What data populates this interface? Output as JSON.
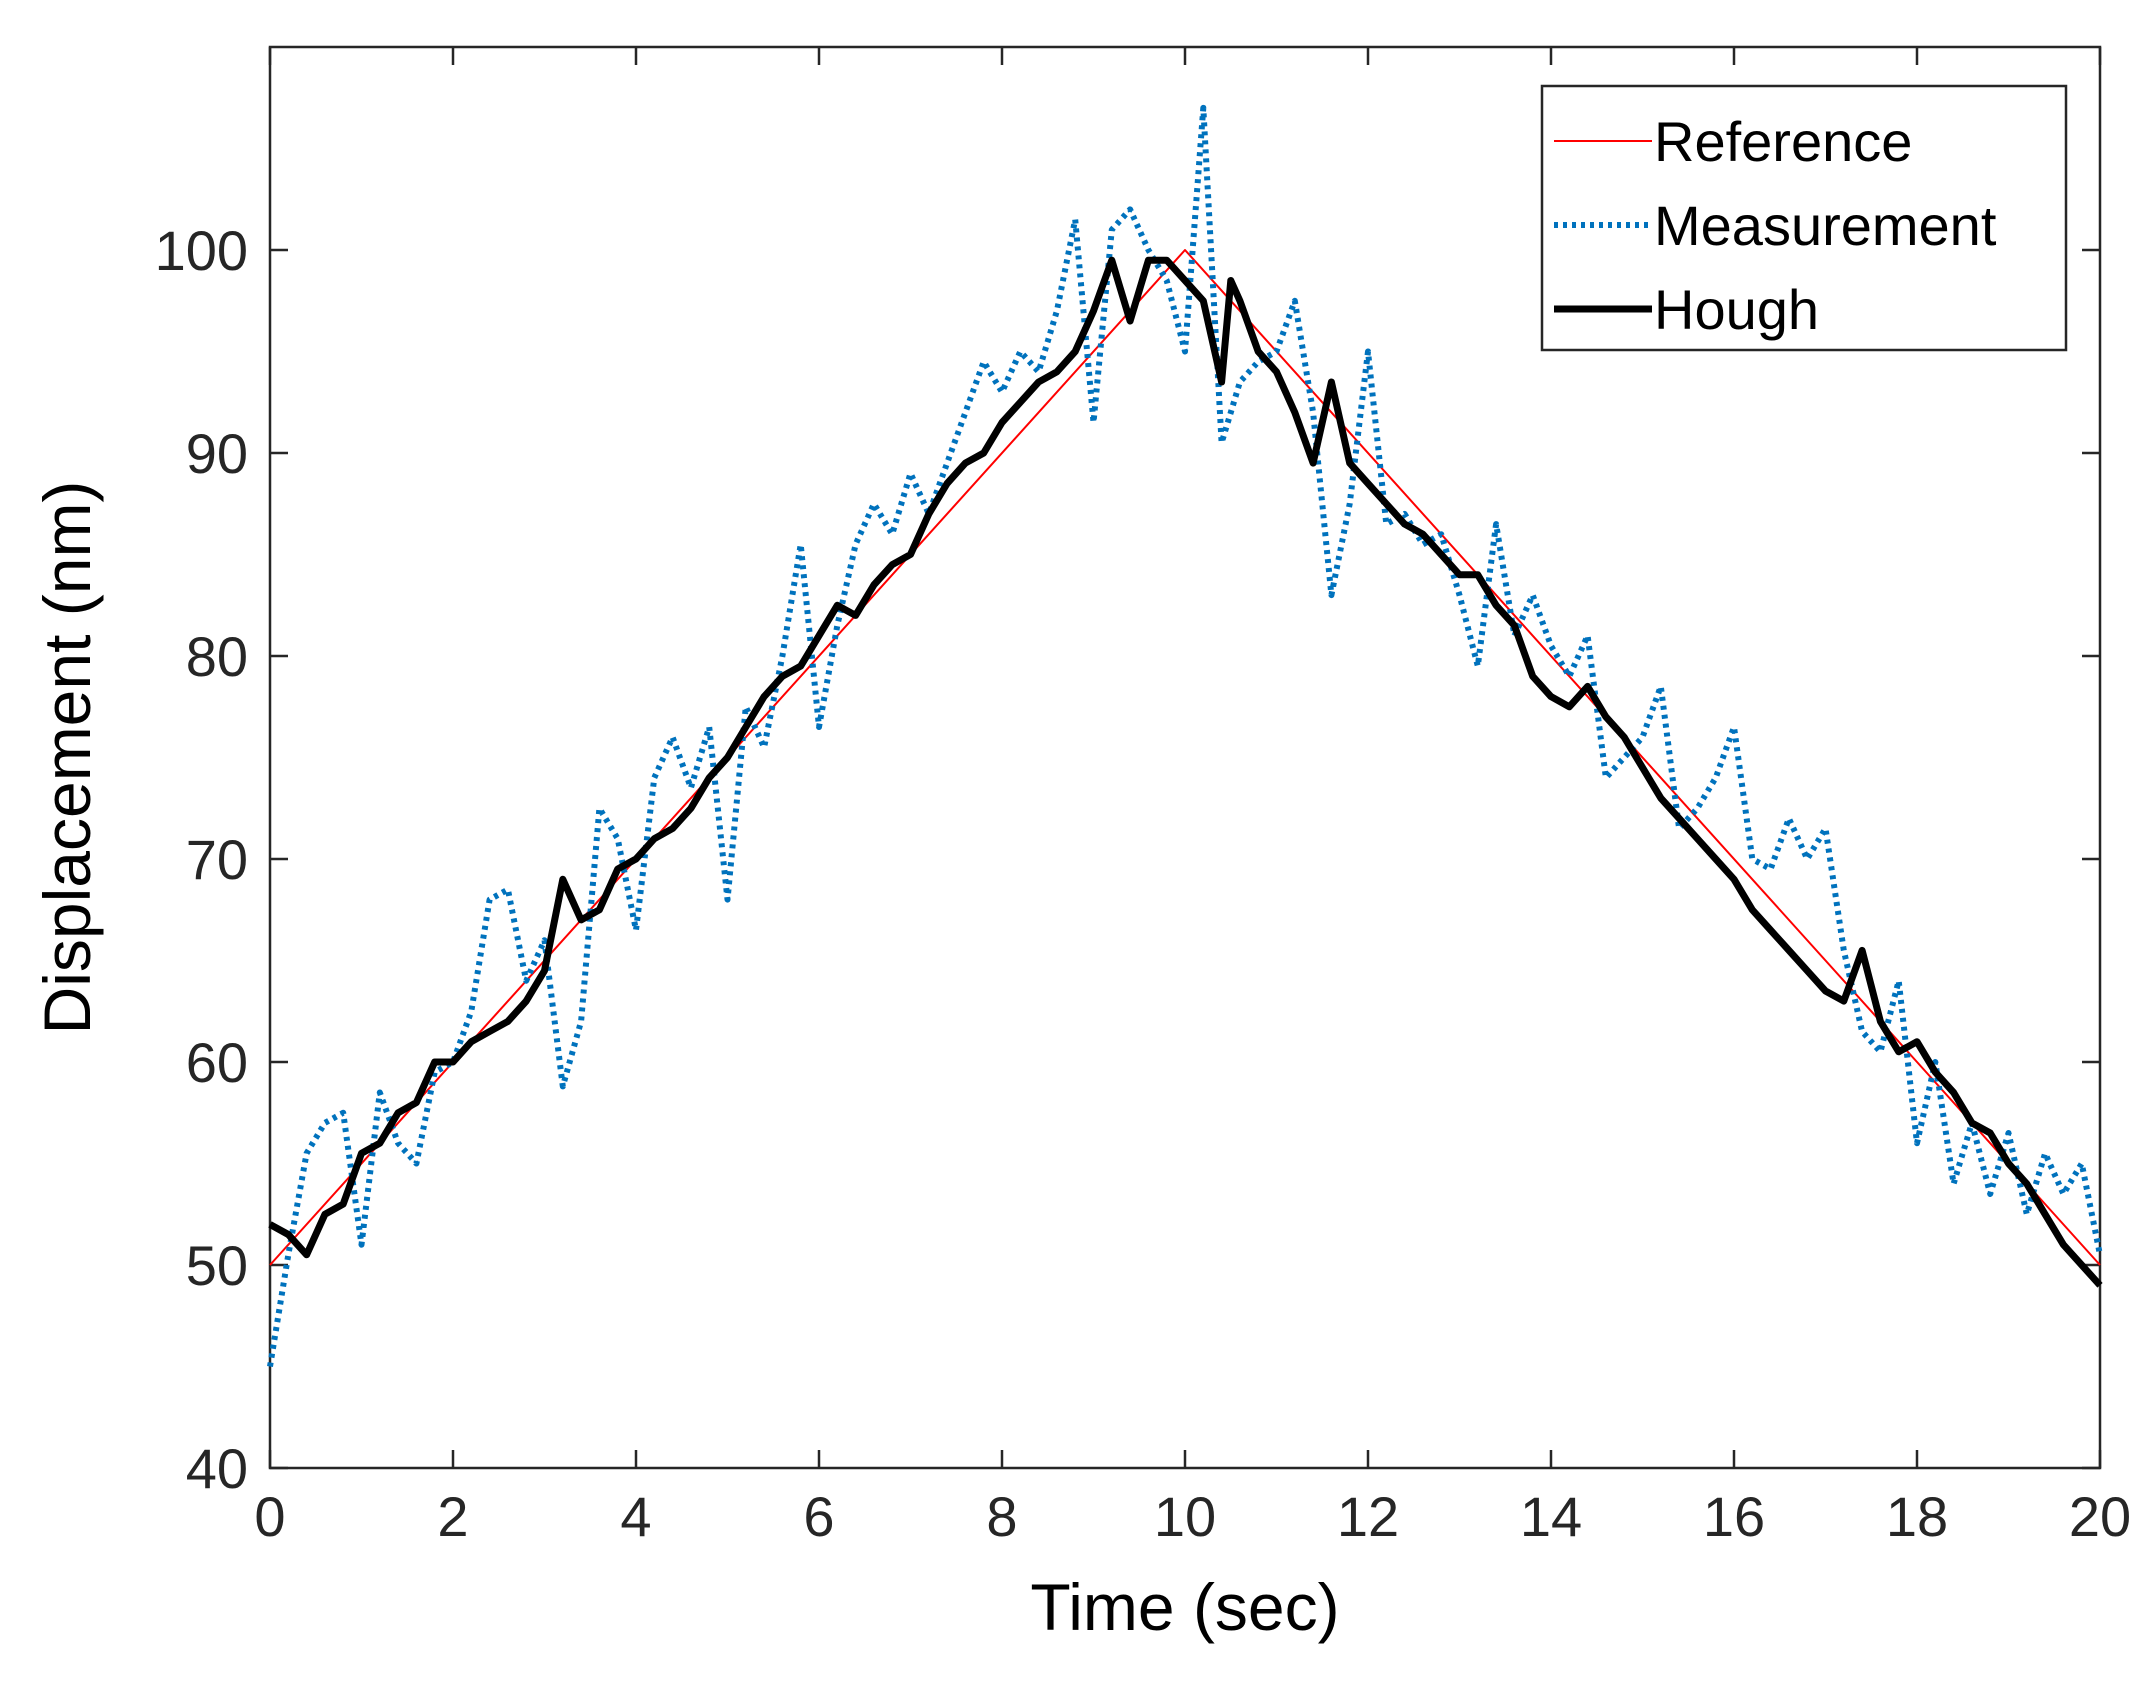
{
  "chart_data": {
    "type": "line",
    "title": "",
    "xlabel": "Time (sec)",
    "ylabel": "Displacement (nm)",
    "xlim": [
      0,
      20
    ],
    "ylim": [
      40,
      110
    ],
    "xticks": [
      0,
      2,
      4,
      6,
      8,
      10,
      12,
      14,
      16,
      18,
      20
    ],
    "yticks": [
      40,
      50,
      60,
      70,
      80,
      90,
      100
    ],
    "xtick_labels": [
      "0",
      "2",
      "4",
      "6",
      "8",
      "10",
      "12",
      "14",
      "16",
      "18",
      "20"
    ],
    "ytick_labels": [
      "40",
      "50",
      "60",
      "70",
      "80",
      "90",
      "100"
    ],
    "grid": false,
    "legend_position": "top-right",
    "series": [
      {
        "name": "Reference",
        "color": "#ff0000",
        "style": "solid-thin",
        "x": [
          0,
          10,
          20
        ],
        "y": [
          50,
          100,
          50
        ]
      },
      {
        "name": "Measurement",
        "color": "#0072bd",
        "style": "dotted",
        "x": [
          0,
          0.2,
          0.4,
          0.6,
          0.8,
          1.0,
          1.2,
          1.4,
          1.6,
          1.8,
          2.0,
          2.2,
          2.4,
          2.6,
          2.8,
          3.0,
          3.2,
          3.4,
          3.6,
          3.8,
          4.0,
          4.2,
          4.4,
          4.6,
          4.8,
          5.0,
          5.2,
          5.4,
          5.6,
          5.8,
          6.0,
          6.2,
          6.4,
          6.6,
          6.8,
          7.0,
          7.2,
          7.4,
          7.6,
          7.8,
          8.0,
          8.2,
          8.4,
          8.6,
          8.8,
          9.0,
          9.2,
          9.4,
          9.6,
          9.8,
          10.0,
          10.2,
          10.4,
          10.5,
          10.6,
          10.8,
          11.0,
          11.2,
          11.4,
          11.6,
          11.8,
          12.0,
          12.2,
          12.4,
          12.6,
          12.8,
          13.0,
          13.2,
          13.4,
          13.6,
          13.8,
          14.0,
          14.2,
          14.4,
          14.6,
          14.8,
          15.0,
          15.2,
          15.4,
          15.6,
          15.8,
          16.0,
          16.2,
          16.4,
          16.6,
          16.8,
          17.0,
          17.2,
          17.4,
          17.6,
          17.8,
          18.0,
          18.2,
          18.4,
          18.6,
          18.8,
          19.0,
          19.2,
          19.4,
          19.6,
          19.8,
          20.0
        ],
        "y": [
          45.0,
          50.5,
          55.5,
          57.0,
          57.5,
          51.0,
          58.5,
          56.0,
          55.0,
          59.5,
          60.0,
          62.5,
          68.0,
          68.5,
          64.0,
          66.0,
          58.8,
          62.0,
          72.5,
          71.0,
          66.5,
          74.0,
          76.0,
          73.5,
          76.5,
          68.0,
          77.5,
          75.5,
          80.0,
          85.5,
          76.5,
          81.5,
          85.5,
          87.5,
          86.0,
          89.0,
          87.0,
          89.5,
          92.0,
          94.5,
          93.0,
          95.0,
          94.0,
          97.0,
          101.5,
          91.5,
          101.0,
          102.0,
          100.0,
          98.5,
          95.0,
          107.0,
          90.5,
          92.0,
          93.5,
          94.5,
          95.0,
          97.5,
          92.0,
          83.0,
          87.5,
          95.0,
          86.5,
          87.0,
          85.5,
          86.0,
          83.0,
          79.5,
          86.5,
          81.0,
          83.0,
          80.5,
          79.0,
          81.0,
          74.0,
          75.0,
          76.0,
          78.5,
          71.5,
          72.5,
          74.0,
          76.5,
          70.0,
          69.5,
          72.0,
          70.0,
          71.5,
          65.5,
          61.5,
          60.5,
          64.0,
          56.0,
          60.0,
          54.0,
          57.0,
          53.5,
          56.5,
          52.5,
          55.5,
          53.5,
          55.0,
          50.5
        ]
      },
      {
        "name": "Hough",
        "color": "#000000",
        "style": "solid-thick",
        "x": [
          0,
          0.2,
          0.4,
          0.6,
          0.8,
          1.0,
          1.2,
          1.4,
          1.6,
          1.8,
          2.0,
          2.2,
          2.4,
          2.6,
          2.8,
          3.0,
          3.2,
          3.4,
          3.6,
          3.8,
          4.0,
          4.2,
          4.4,
          4.6,
          4.8,
          5.0,
          5.2,
          5.4,
          5.6,
          5.8,
          6.0,
          6.2,
          6.4,
          6.6,
          6.8,
          7.0,
          7.2,
          7.4,
          7.6,
          7.8,
          8.0,
          8.2,
          8.4,
          8.6,
          8.8,
          9.0,
          9.2,
          9.4,
          9.6,
          9.8,
          10.0,
          10.2,
          10.4,
          10.5,
          10.6,
          10.8,
          11.0,
          11.2,
          11.4,
          11.6,
          11.8,
          12.0,
          12.2,
          12.4,
          12.6,
          12.8,
          13.0,
          13.2,
          13.4,
          13.6,
          13.8,
          14.0,
          14.2,
          14.4,
          14.6,
          14.8,
          15.0,
          15.2,
          15.4,
          15.6,
          15.8,
          16.0,
          16.2,
          16.4,
          16.6,
          16.8,
          17.0,
          17.2,
          17.4,
          17.6,
          17.8,
          18.0,
          18.2,
          18.4,
          18.6,
          18.8,
          19.0,
          19.2,
          19.4,
          19.6,
          19.8,
          20.0
        ],
        "y": [
          52.0,
          51.5,
          50.5,
          52.5,
          53.0,
          55.5,
          56.0,
          57.5,
          58.0,
          60.0,
          60.0,
          61.0,
          61.5,
          62.0,
          63.0,
          64.5,
          69.0,
          67.0,
          67.5,
          69.5,
          70.0,
          71.0,
          71.5,
          72.5,
          74.0,
          75.0,
          76.5,
          78.0,
          79.0,
          79.5,
          81.0,
          82.5,
          82.0,
          83.5,
          84.5,
          85.0,
          87.0,
          88.5,
          89.5,
          90.0,
          91.5,
          92.5,
          93.5,
          94.0,
          95.0,
          97.0,
          99.5,
          96.5,
          99.5,
          99.5,
          98.5,
          97.5,
          93.5,
          98.5,
          97.5,
          95.0,
          94.0,
          92.0,
          89.5,
          93.5,
          89.5,
          88.5,
          87.5,
          86.5,
          86.0,
          85.0,
          84.0,
          84.0,
          82.5,
          81.5,
          79.0,
          78.0,
          77.5,
          78.5,
          77.0,
          76.0,
          74.5,
          73.0,
          72.0,
          71.0,
          70.0,
          69.0,
          67.5,
          66.5,
          65.5,
          64.5,
          63.5,
          63.0,
          65.5,
          62.0,
          60.5,
          61.0,
          59.5,
          58.5,
          57.0,
          56.5,
          55.0,
          54.0,
          52.5,
          51.0,
          50.0,
          49.0
        ]
      }
    ]
  }
}
